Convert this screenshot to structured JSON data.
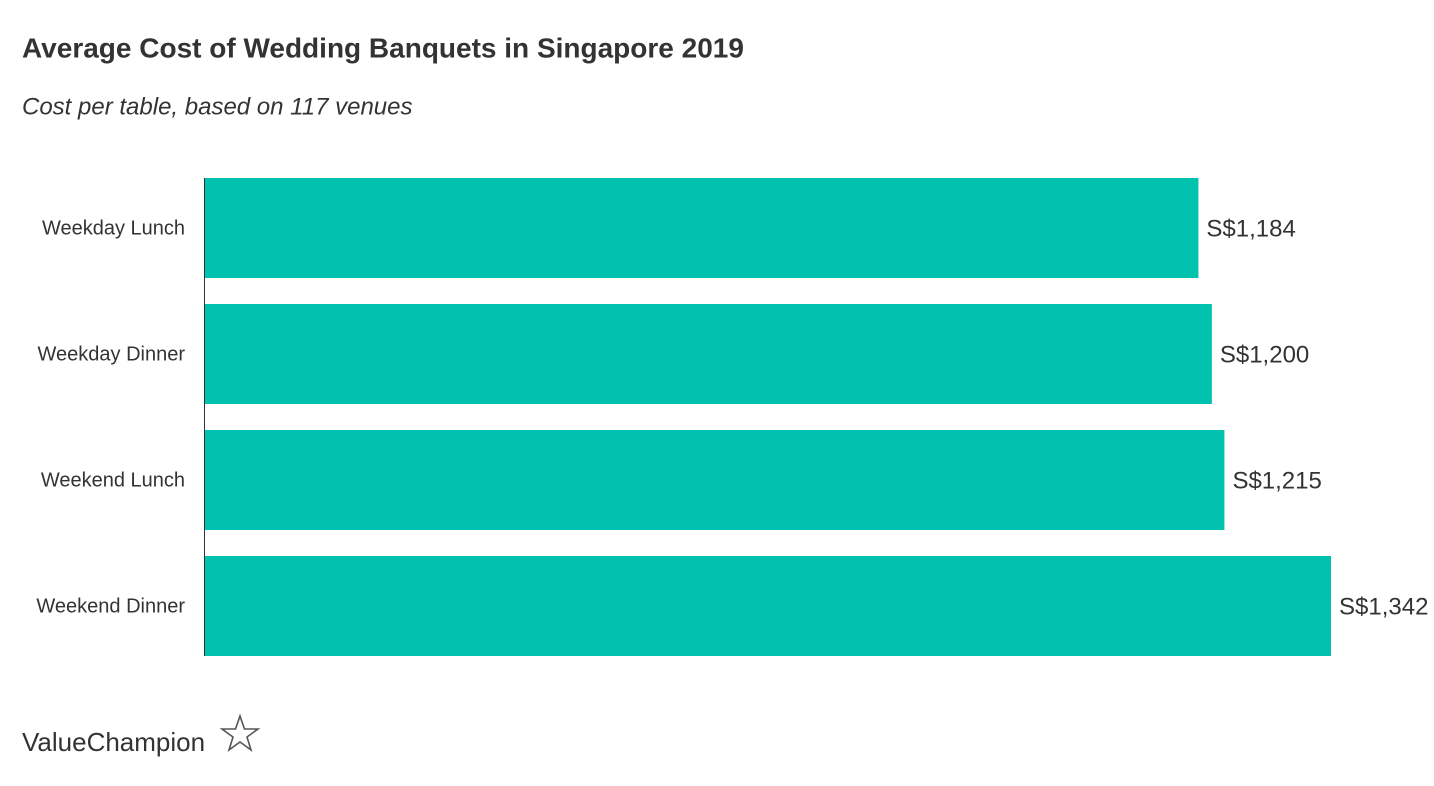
{
  "chart_data": {
    "type": "hbar",
    "title": "Average Cost of Wedding Banquets in Singapore 2019",
    "subtitle": "Cost per table, based on 117 venues",
    "categories": [
      "Weekday Lunch",
      "Weekday Dinner",
      "Weekend Lunch",
      "Weekend Dinner"
    ],
    "values": [
      1184,
      1200,
      1215,
      1342
    ],
    "value_labels": [
      "S$1,184",
      "S$1,200",
      "S$1,215",
      "S$1,342"
    ],
    "color": "#00c2ae",
    "logo": "ValueChampion"
  }
}
